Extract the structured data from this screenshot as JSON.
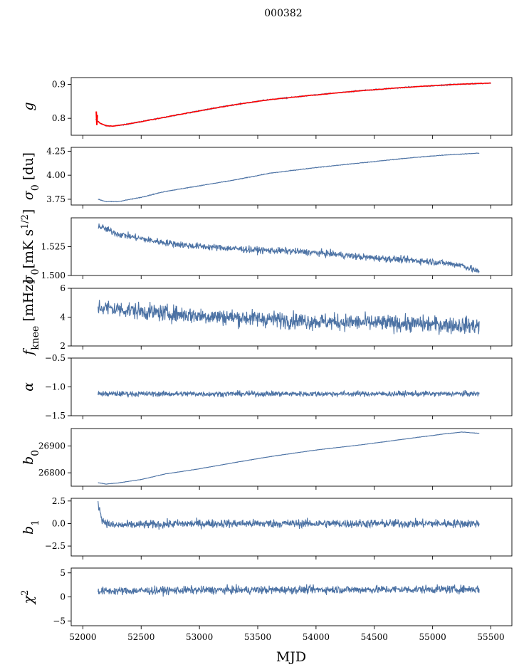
{
  "figure": {
    "title": "000382",
    "xlabel": "MJD"
  },
  "colors": {
    "series": "#4c72a4",
    "overlay": "#ff0000"
  },
  "chart_data": [
    {
      "type": "line",
      "key": "g",
      "ylabel_main": "g",
      "ylabel_sub": "",
      "ylabel_tail": "",
      "xlim": [
        51900,
        55680
      ],
      "ylim": [
        0.75,
        0.92
      ],
      "xticks": [
        "52000",
        "52500",
        "53000",
        "53500",
        "54000",
        "54500",
        "55000",
        "55500"
      ],
      "yticks": [
        "0.8",
        "0.9"
      ],
      "x_range": [
        52110,
        55500
      ],
      "curve": [
        [
          52110,
          0.797
        ],
        [
          52150,
          0.785
        ],
        [
          52200,
          0.778
        ],
        [
          52260,
          0.777
        ],
        [
          52350,
          0.781
        ],
        [
          52500,
          0.79
        ],
        [
          52700,
          0.803
        ],
        [
          53000,
          0.822
        ],
        [
          53300,
          0.84
        ],
        [
          53600,
          0.855
        ],
        [
          54000,
          0.869
        ],
        [
          54400,
          0.882
        ],
        [
          54800,
          0.892
        ],
        [
          55200,
          0.9
        ],
        [
          55500,
          0.904
        ]
      ],
      "noise": 0.0015,
      "overlay": {
        "visible": true,
        "spike": [
          [
            52115,
            0.82
          ],
          [
            52120,
            0.78
          ],
          [
            52125,
            0.81
          ]
        ]
      }
    },
    {
      "type": "line",
      "key": "sigma0_du",
      "ylabel_main": "σ",
      "ylabel_sub": "0",
      "ylabel_tail": " [du]",
      "xlim": [
        51900,
        55680
      ],
      "ylim": [
        3.69,
        4.29
      ],
      "xticks": [
        "52000",
        "52500",
        "53000",
        "53500",
        "54000",
        "54500",
        "55000",
        "55500"
      ],
      "yticks": [
        "3.75",
        "4.00",
        "4.25"
      ],
      "x_range": [
        52130,
        55400
      ],
      "curve": [
        [
          52130,
          3.75
        ],
        [
          52200,
          3.725
        ],
        [
          52300,
          3.725
        ],
        [
          52500,
          3.77
        ],
        [
          52700,
          3.83
        ],
        [
          53000,
          3.89
        ],
        [
          53300,
          3.95
        ],
        [
          53600,
          4.02
        ],
        [
          54000,
          4.08
        ],
        [
          54400,
          4.13
        ],
        [
          54800,
          4.18
        ],
        [
          55100,
          4.21
        ],
        [
          55400,
          4.23
        ]
      ],
      "noise": 0.003
    },
    {
      "type": "line",
      "key": "sigma0_mK",
      "ylabel_main": "σ",
      "ylabel_sub": "0",
      "ylabel_tail": "[mK s",
      "ylabel_sup": "1/2",
      "ylabel_end": "]",
      "xlim": [
        51900,
        55680
      ],
      "ylim": [
        1.5,
        1.55
      ],
      "xticks": [
        "52000",
        "52500",
        "53000",
        "53500",
        "54000",
        "54500",
        "55000",
        "55500"
      ],
      "yticks": [
        "1.500",
        "1.525"
      ],
      "x_range": [
        52130,
        55400
      ],
      "curve": [
        [
          52130,
          1.543
        ],
        [
          52300,
          1.536
        ],
        [
          52600,
          1.53
        ],
        [
          52900,
          1.526
        ],
        [
          53200,
          1.524
        ],
        [
          53500,
          1.522
        ],
        [
          53800,
          1.521
        ],
        [
          54100,
          1.519
        ],
        [
          54400,
          1.516
        ],
        [
          54700,
          1.514
        ],
        [
          55000,
          1.512
        ],
        [
          55250,
          1.509
        ],
        [
          55400,
          1.503
        ]
      ],
      "noise": 0.0028
    },
    {
      "type": "line",
      "key": "fknee",
      "ylabel_main": "f",
      "ylabel_sub": "knee",
      "ylabel_tail": " [mHz]",
      "xlim": [
        51900,
        55680
      ],
      "ylim": [
        2,
        6
      ],
      "xticks": [
        "52000",
        "52500",
        "53000",
        "53500",
        "54000",
        "54500",
        "55000",
        "55500"
      ],
      "yticks": [
        "2",
        "4",
        "6"
      ],
      "x_range": [
        52130,
        55400
      ],
      "curve": [
        [
          52130,
          4.7
        ],
        [
          52500,
          4.4
        ],
        [
          53000,
          4.1
        ],
        [
          53500,
          3.9
        ],
        [
          54000,
          3.7
        ],
        [
          54500,
          3.6
        ],
        [
          55000,
          3.5
        ],
        [
          55400,
          3.4
        ]
      ],
      "noise": 0.55
    },
    {
      "type": "line",
      "key": "alpha",
      "ylabel_main": "α",
      "ylabel_sub": "",
      "ylabel_tail": "",
      "xlim": [
        51900,
        55680
      ],
      "ylim": [
        -1.5,
        -0.5
      ],
      "xticks": [
        "52000",
        "52500",
        "53000",
        "53500",
        "54000",
        "54500",
        "55000",
        "55500"
      ],
      "yticks": [
        "−1.5",
        "−1.0",
        "−0.5"
      ],
      "x_range": [
        52130,
        55400
      ],
      "curve": [
        [
          52130,
          -1.12
        ],
        [
          53000,
          -1.12
        ],
        [
          54000,
          -1.12
        ],
        [
          55400,
          -1.12
        ]
      ],
      "noise": 0.045
    },
    {
      "type": "line",
      "key": "b0",
      "ylabel_main": "b",
      "ylabel_sub": "0",
      "ylabel_tail": "",
      "xlim": [
        51900,
        55680
      ],
      "ylim": [
        26750,
        26965
      ],
      "xticks": [
        "52000",
        "52500",
        "53000",
        "53500",
        "54000",
        "54500",
        "55000",
        "55500"
      ],
      "yticks": [
        "26800",
        "26900"
      ],
      "x_range": [
        52130,
        55400
      ],
      "curve": [
        [
          52130,
          26763
        ],
        [
          52200,
          26758
        ],
        [
          52300,
          26762
        ],
        [
          52500,
          26775
        ],
        [
          52700,
          26795
        ],
        [
          53000,
          26815
        ],
        [
          53300,
          26838
        ],
        [
          53600,
          26860
        ],
        [
          54000,
          26885
        ],
        [
          54400,
          26905
        ],
        [
          54800,
          26928
        ],
        [
          55100,
          26945
        ],
        [
          55250,
          26952
        ],
        [
          55400,
          26947
        ]
      ],
      "noise": 0.6
    },
    {
      "type": "line",
      "key": "b1",
      "ylabel_main": "b",
      "ylabel_sub": "1",
      "ylabel_tail": "",
      "xlim": [
        51900,
        55680
      ],
      "ylim": [
        -3.6,
        2.8
      ],
      "xticks": [
        "52000",
        "52500",
        "53000",
        "53500",
        "54000",
        "54500",
        "55000",
        "55500"
      ],
      "yticks": [
        "−2.5",
        "0.0",
        "2.5"
      ],
      "x_range": [
        52130,
        55400
      ],
      "curve": [
        [
          52130,
          2.2
        ],
        [
          52170,
          0.3
        ],
        [
          52250,
          -0.2
        ],
        [
          53000,
          0.0
        ],
        [
          54000,
          0.0
        ],
        [
          55400,
          0.0
        ]
      ],
      "noise": 0.45
    },
    {
      "type": "line",
      "key": "chi2",
      "ylabel_main": "χ",
      "ylabel_sub": "",
      "ylabel_tail": "",
      "ylabel_sup": "2",
      "xlim": [
        51900,
        55680
      ],
      "ylim": [
        -6,
        6
      ],
      "xticks": [
        "52000",
        "52500",
        "53000",
        "53500",
        "54000",
        "54500",
        "55000",
        "55500"
      ],
      "yticks": [
        "−5",
        "0",
        "5"
      ],
      "x_range": [
        52130,
        55400
      ],
      "curve": [
        [
          52130,
          1.2
        ],
        [
          53000,
          1.4
        ],
        [
          54000,
          1.5
        ],
        [
          55400,
          1.6
        ]
      ],
      "noise": 0.8
    }
  ]
}
